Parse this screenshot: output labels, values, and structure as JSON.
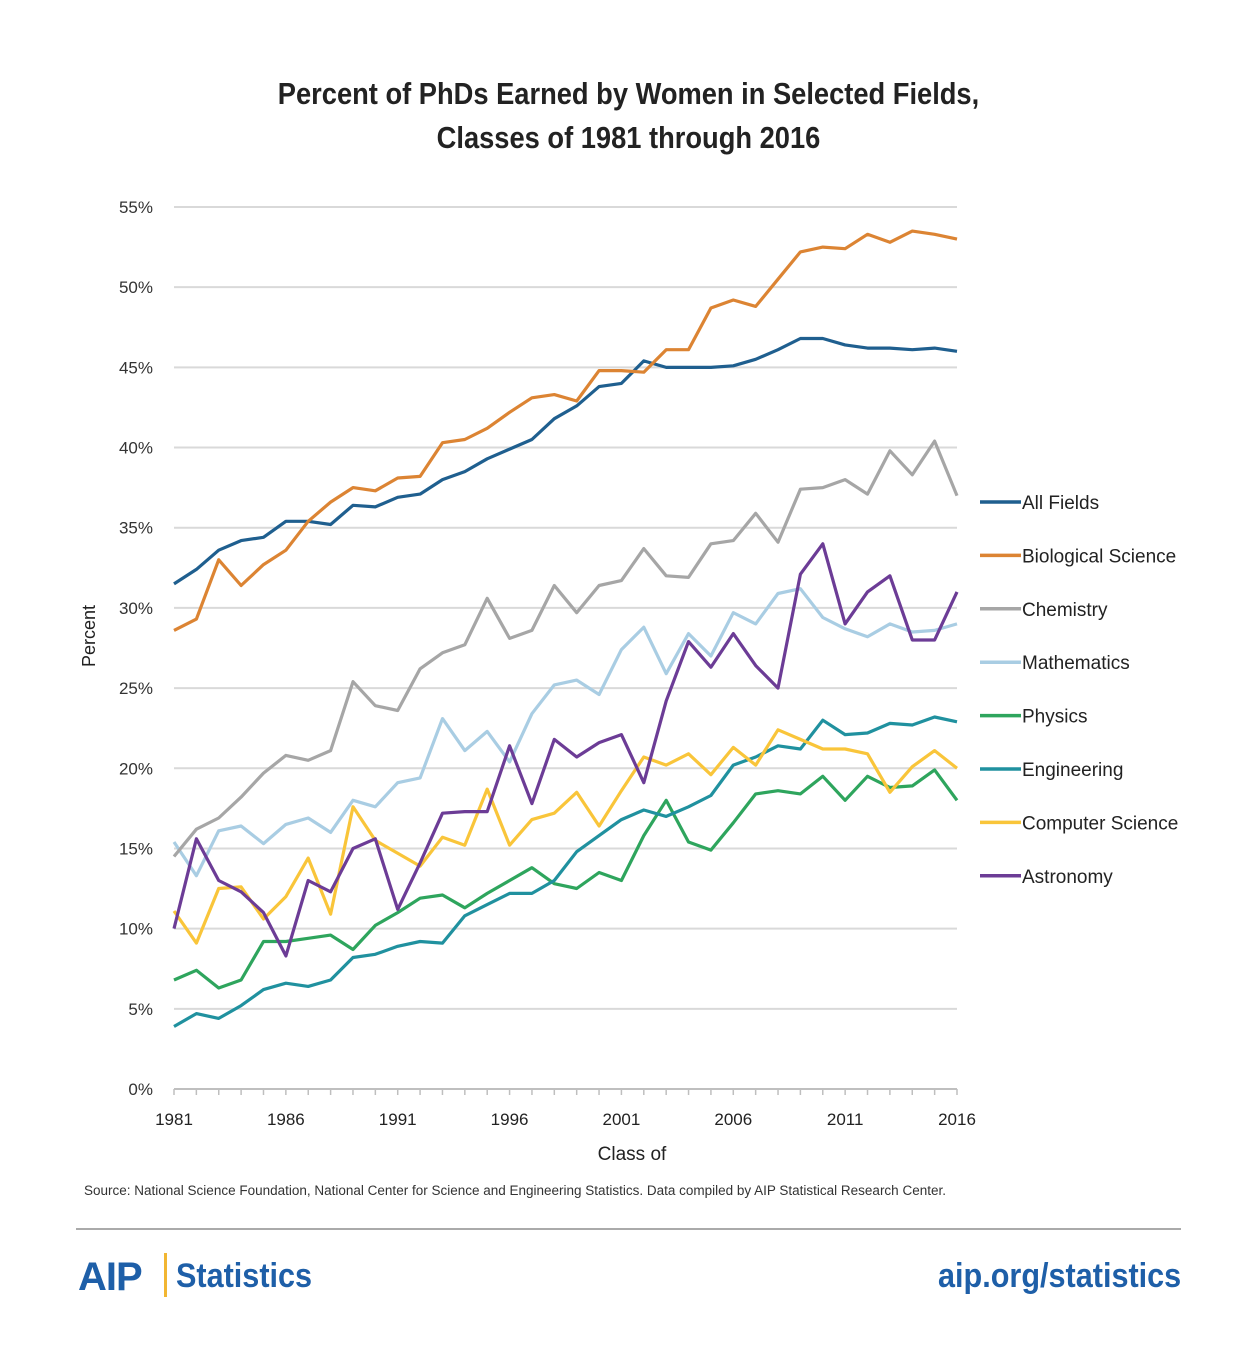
{
  "chart_data": {
    "type": "line",
    "title_line1": "Percent of PhDs Earned by Women in Selected Fields,",
    "title_line2": "Classes of 1981 through 2016",
    "xlabel": "Class of",
    "ylabel": "Percent",
    "ylim": [
      0,
      55
    ],
    "xlim": [
      1981,
      2016
    ],
    "yticks": [
      "0%",
      "5%",
      "10%",
      "15%",
      "20%",
      "25%",
      "30%",
      "35%",
      "40%",
      "45%",
      "50%",
      "55%"
    ],
    "xticks": [
      "1981",
      "1986",
      "1991",
      "1996",
      "2001",
      "2006",
      "2011",
      "2016"
    ],
    "grid": true,
    "legend_position": "right",
    "x": [
      1981,
      1982,
      1983,
      1984,
      1985,
      1986,
      1987,
      1988,
      1989,
      1990,
      1991,
      1992,
      1993,
      1994,
      1995,
      1996,
      1997,
      1998,
      1999,
      2000,
      2001,
      2002,
      2003,
      2004,
      2005,
      2006,
      2007,
      2008,
      2009,
      2010,
      2011,
      2012,
      2013,
      2014,
      2015,
      2016
    ],
    "series": [
      {
        "name": "All Fields",
        "color": "#1f5f8f",
        "values": [
          31.5,
          32.4,
          33.6,
          34.2,
          34.4,
          35.4,
          35.4,
          35.2,
          36.4,
          36.3,
          36.9,
          37.1,
          38.0,
          38.5,
          39.3,
          39.9,
          40.5,
          41.8,
          42.6,
          43.8,
          44.0,
          45.4,
          45.0,
          45.0,
          45.0,
          45.1,
          45.5,
          46.1,
          46.8,
          46.8,
          46.4,
          46.2,
          46.2,
          46.1,
          46.2,
          46.0
        ]
      },
      {
        "name": "Biological Science",
        "color": "#dc8433",
        "values": [
          28.6,
          29.3,
          33.0,
          31.4,
          32.7,
          33.6,
          35.4,
          36.6,
          37.5,
          37.3,
          38.1,
          38.2,
          40.3,
          40.5,
          41.2,
          42.2,
          43.1,
          43.3,
          42.9,
          44.8,
          44.8,
          44.7,
          46.1,
          46.1,
          48.7,
          49.2,
          48.8,
          50.5,
          52.2,
          52.5,
          52.4,
          53.3,
          52.8,
          53.5,
          53.3,
          53.0
        ]
      },
      {
        "name": "Chemistry",
        "color": "#a6a6a6",
        "values": [
          14.5,
          16.2,
          16.9,
          18.2,
          19.7,
          20.8,
          20.5,
          21.1,
          25.4,
          23.9,
          23.6,
          26.2,
          27.2,
          27.7,
          30.6,
          28.1,
          28.6,
          31.4,
          29.7,
          31.4,
          31.7,
          33.7,
          32.0,
          31.9,
          34.0,
          34.2,
          35.9,
          34.1,
          37.4,
          37.5,
          38.0,
          37.1,
          39.8,
          38.3,
          40.4,
          37.0
        ]
      },
      {
        "name": "Mathematics",
        "color": "#a9cde3",
        "values": [
          15.4,
          13.3,
          16.1,
          16.4,
          15.3,
          16.5,
          16.9,
          16.0,
          18.0,
          17.6,
          19.1,
          19.4,
          23.1,
          21.1,
          22.3,
          20.4,
          23.4,
          25.2,
          25.5,
          24.6,
          27.4,
          28.8,
          25.9,
          28.4,
          27.0,
          29.7,
          29.0,
          30.9,
          31.2,
          29.4,
          28.7,
          28.2,
          29.0,
          28.5,
          28.6,
          29.0
        ]
      },
      {
        "name": "Physics",
        "color": "#2ea55d",
        "values": [
          6.8,
          7.4,
          6.3,
          6.8,
          9.2,
          9.2,
          9.4,
          9.6,
          8.7,
          10.2,
          11.0,
          11.9,
          12.1,
          11.3,
          12.2,
          13.0,
          13.8,
          12.8,
          12.5,
          13.5,
          13.0,
          15.8,
          18.0,
          15.4,
          14.9,
          16.6,
          18.4,
          18.6,
          18.4,
          19.5,
          18.0,
          19.5,
          18.8,
          18.9,
          19.9,
          18.0
        ]
      },
      {
        "name": "Engineering",
        "color": "#20919f",
        "values": [
          3.9,
          4.7,
          4.4,
          5.2,
          6.2,
          6.6,
          6.4,
          6.8,
          8.2,
          8.4,
          8.9,
          9.2,
          9.1,
          10.8,
          11.5,
          12.2,
          12.2,
          13.0,
          14.8,
          15.8,
          16.8,
          17.4,
          17.0,
          17.6,
          18.3,
          20.2,
          20.7,
          21.4,
          21.2,
          23.0,
          22.1,
          22.2,
          22.8,
          22.7,
          23.2,
          22.9
        ]
      },
      {
        "name": "Computer Science",
        "color": "#f9c53a",
        "values": [
          11.1,
          9.1,
          12.5,
          12.6,
          10.6,
          12.0,
          14.4,
          10.9,
          17.6,
          15.5,
          14.7,
          13.9,
          15.7,
          15.2,
          18.7,
          15.2,
          16.8,
          17.2,
          18.5,
          16.4,
          18.6,
          20.7,
          20.2,
          20.9,
          19.6,
          21.3,
          20.2,
          22.4,
          21.8,
          21.2,
          21.2,
          20.9,
          18.5,
          20.1,
          21.1,
          20.0
        ]
      },
      {
        "name": "Astronomy",
        "color": "#6c3c96",
        "values": [
          10.0,
          15.6,
          13.0,
          12.3,
          11.0,
          8.3,
          13.0,
          12.3,
          15.0,
          15.6,
          11.2,
          14.1,
          17.2,
          17.3,
          17.3,
          21.4,
          17.8,
          21.8,
          20.7,
          21.6,
          22.1,
          19.1,
          24.2,
          27.9,
          26.3,
          28.4,
          26.4,
          25.0,
          32.1,
          34.0,
          29.0,
          31.0,
          32.0,
          28.0,
          28.0,
          31.0
        ]
      }
    ]
  },
  "source_text": "Source: National Science Foundation, National Center for Science and Engineering Statistics.  Data compiled by AIP Statistical Research Center.",
  "footer": {
    "logo": "AIP",
    "logo_sub": "Statistics",
    "url": "aip.org/statistics"
  }
}
